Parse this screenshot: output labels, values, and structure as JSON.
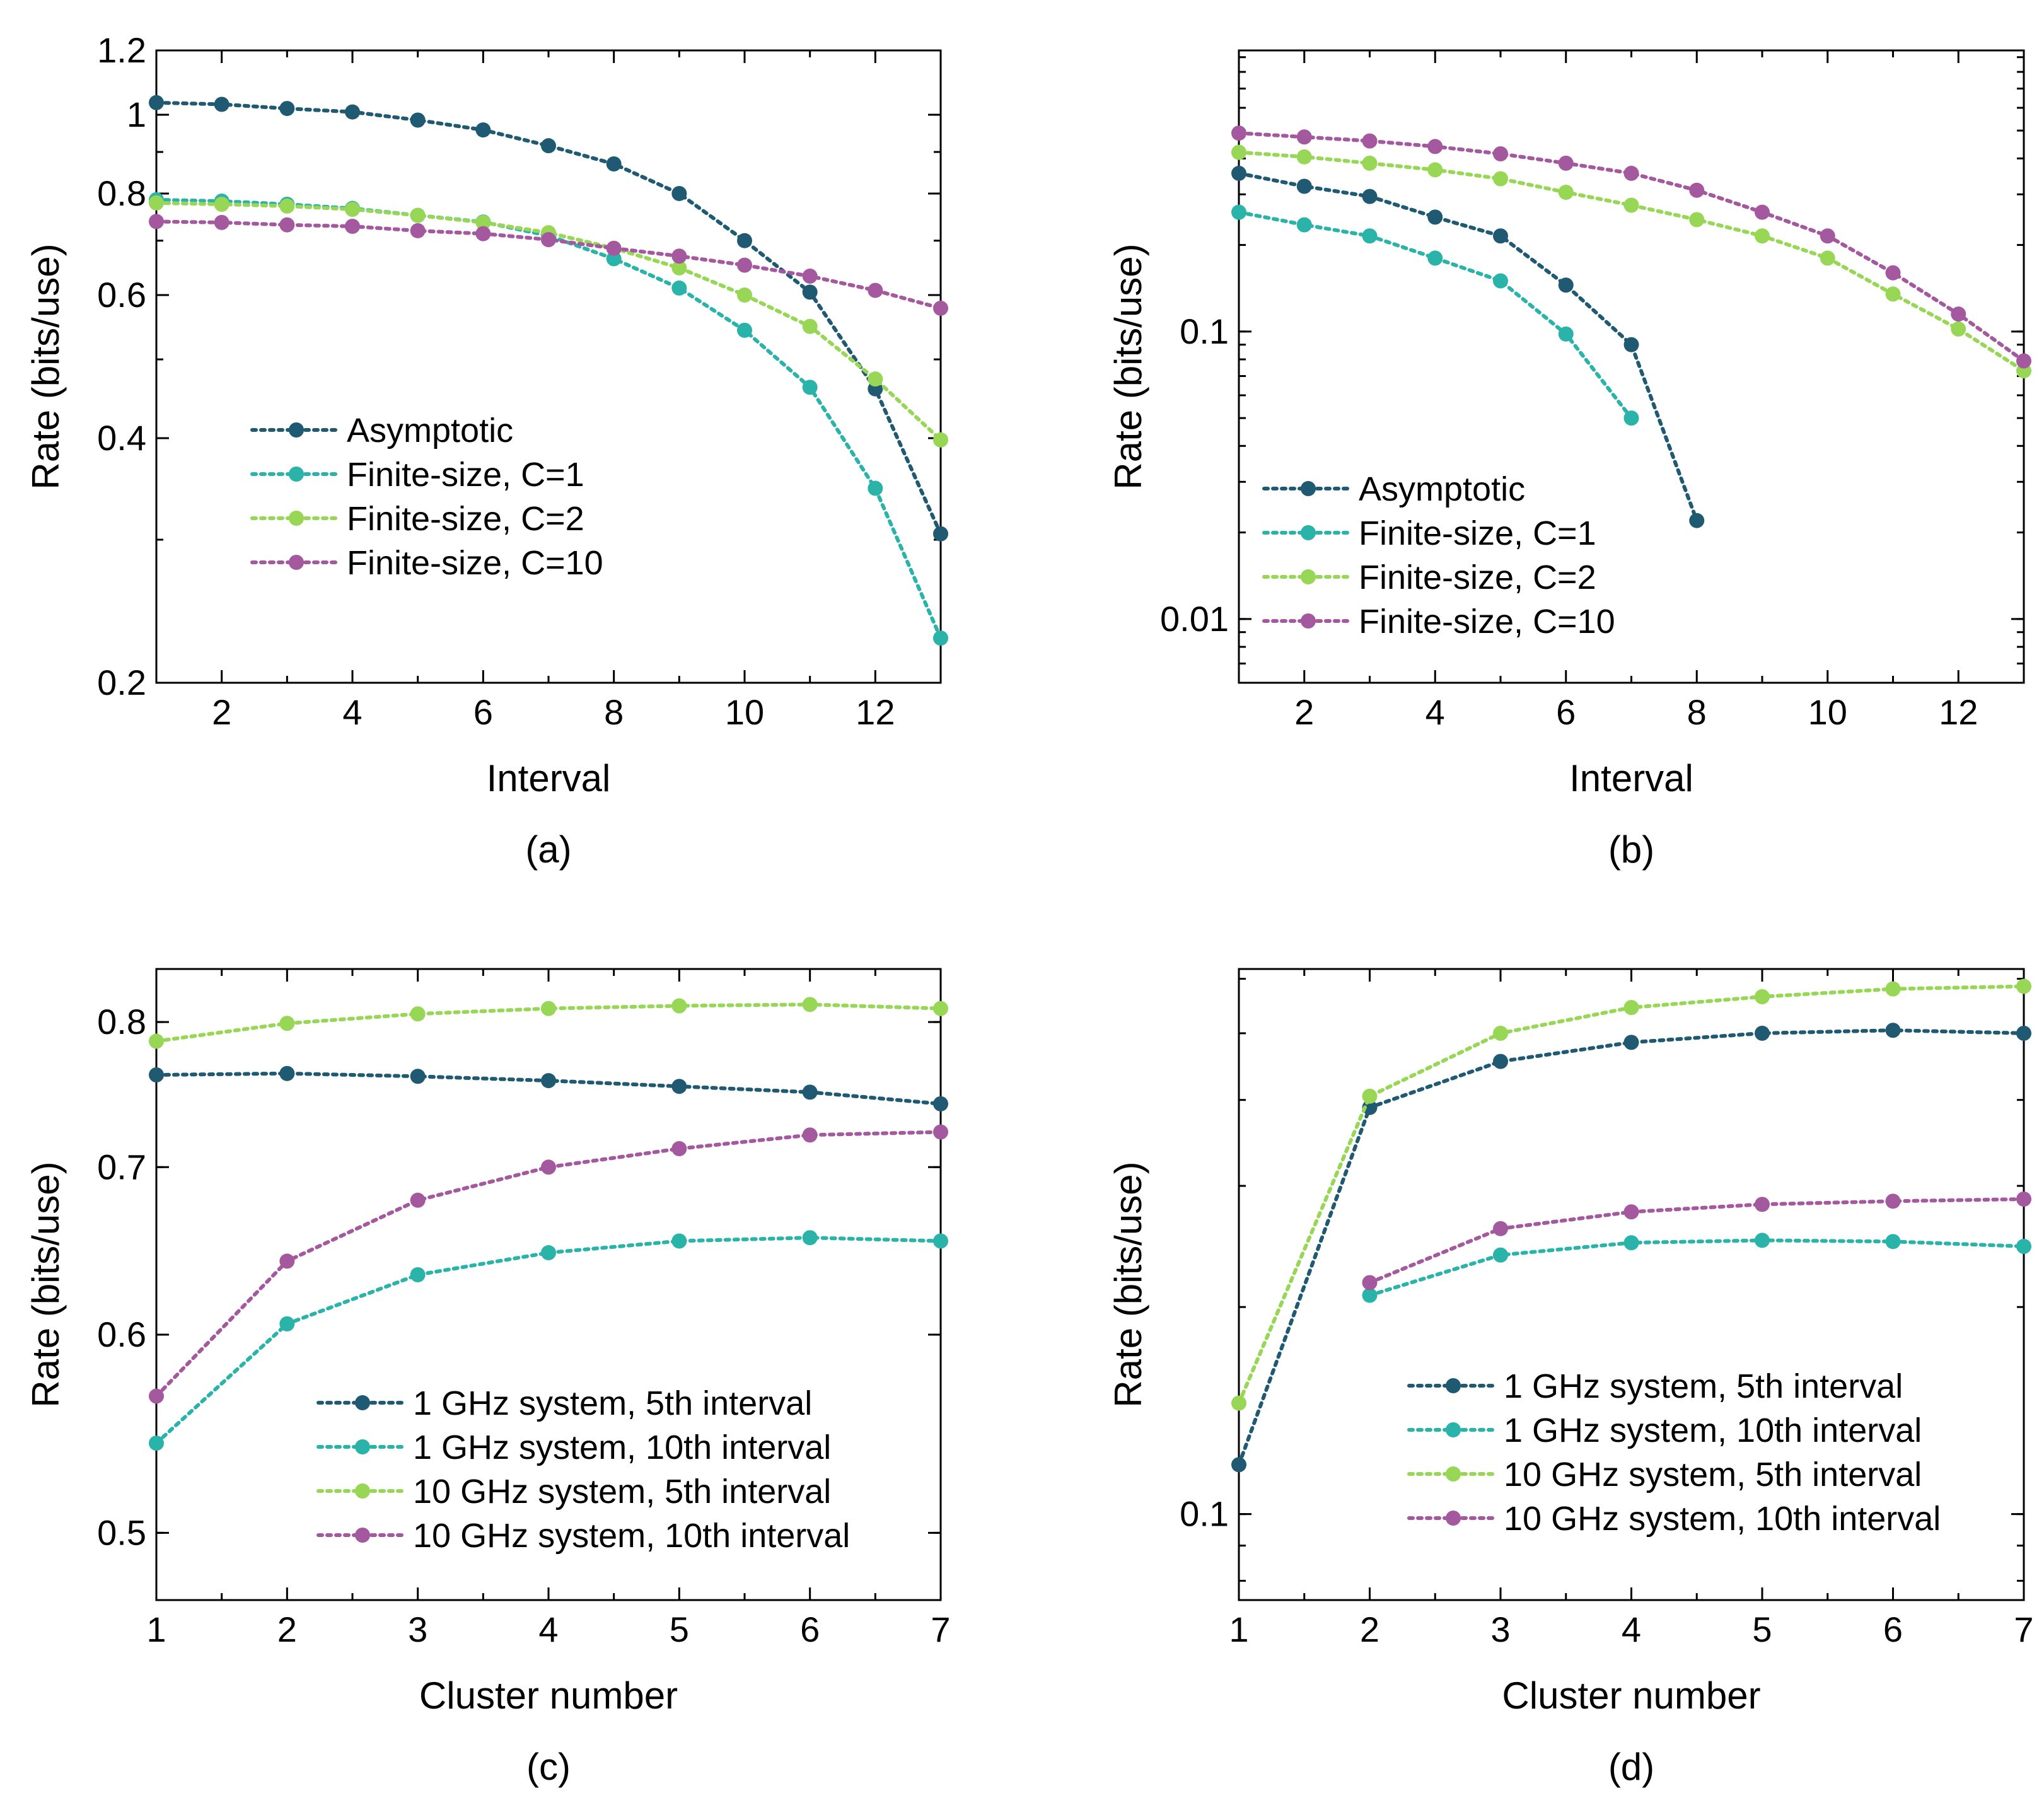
{
  "colors": {
    "asymptotic": "#1f5a72",
    "c1": "#2ab3a9",
    "c2": "#98d656",
    "c10": "#a4599f",
    "axis": "#000000"
  },
  "chart_data": [
    {
      "id": "a",
      "type": "line",
      "scale": "log",
      "caption": "(a)",
      "xlabel": "Interval",
      "ylabel": "Rate (bits/use)",
      "xlim": [
        1,
        13
      ],
      "ylim": [
        0.2,
        1.2
      ],
      "xticks": [
        2,
        4,
        6,
        8,
        10,
        12
      ],
      "xtick_labels": [
        "2",
        "4",
        "6",
        "8",
        "10",
        "12"
      ],
      "yticks": [
        0.2,
        0.4,
        0.6,
        0.8,
        1,
        1.2
      ],
      "ytick_labels": [
        "0.2",
        "0.4",
        "0.6",
        "0.8",
        "1",
        "1.2"
      ],
      "legend_loc": "lower-left",
      "series": [
        {
          "name": "Asymptotic",
          "color_key": "asymptotic",
          "x": [
            1,
            2,
            3,
            4,
            5,
            6,
            7,
            8,
            9,
            10,
            11,
            12,
            13
          ],
          "y": [
            1.035,
            1.03,
            1.018,
            1.008,
            0.985,
            0.958,
            0.916,
            0.87,
            0.8,
            0.7,
            0.605,
            0.46,
            0.305
          ]
        },
        {
          "name": "Finite-size, C=1",
          "color_key": "c1",
          "x": [
            1,
            2,
            3,
            4,
            5,
            6,
            7,
            8,
            9,
            10,
            11,
            12,
            13
          ],
          "y": [
            0.786,
            0.783,
            0.776,
            0.767,
            0.752,
            0.738,
            0.71,
            0.665,
            0.612,
            0.543,
            0.462,
            0.347,
            0.227
          ]
        },
        {
          "name": "Finite-size, C=2",
          "color_key": "c2",
          "x": [
            1,
            2,
            3,
            4,
            5,
            6,
            7,
            8,
            9,
            10,
            11,
            12,
            13
          ],
          "y": [
            0.779,
            0.776,
            0.772,
            0.765,
            0.752,
            0.737,
            0.716,
            0.685,
            0.648,
            0.6,
            0.549,
            0.473,
            0.398
          ]
        },
        {
          "name": "Finite-size, C=10",
          "color_key": "c10",
          "x": [
            1,
            2,
            3,
            4,
            5,
            6,
            7,
            8,
            9,
            10,
            11,
            12,
            13
          ],
          "y": [
            0.739,
            0.737,
            0.732,
            0.729,
            0.72,
            0.714,
            0.702,
            0.685,
            0.67,
            0.653,
            0.633,
            0.608,
            0.578
          ]
        }
      ]
    },
    {
      "id": "b",
      "type": "line",
      "scale": "log",
      "caption": "(b)",
      "xlabel": "Interval",
      "ylabel": "Rate (bits/use)",
      "xlim": [
        1,
        13
      ],
      "ylim": [
        0.006,
        0.95
      ],
      "xticks": [
        2,
        4,
        6,
        8,
        10,
        12
      ],
      "xtick_labels": [
        "2",
        "4",
        "6",
        "8",
        "10",
        "12"
      ],
      "yticks": [
        0.01,
        0.1
      ],
      "ytick_labels": [
        "0.01",
        "0.1"
      ],
      "legend_loc": "lower-left",
      "series": [
        {
          "name": "Asymptotic",
          "color_key": "asymptotic",
          "x": [
            1,
            2,
            3,
            4,
            5,
            6,
            7,
            8
          ],
          "y": [
            0.355,
            0.32,
            0.295,
            0.25,
            0.215,
            0.145,
            0.09,
            0.022
          ]
        },
        {
          "name": "Finite-size, C=1",
          "color_key": "c1",
          "x": [
            1,
            2,
            3,
            4,
            5,
            6,
            7
          ],
          "y": [
            0.26,
            0.235,
            0.215,
            0.18,
            0.15,
            0.098,
            0.05
          ]
        },
        {
          "name": "Finite-size, C=2",
          "color_key": "c2",
          "x": [
            1,
            2,
            3,
            4,
            5,
            6,
            7,
            8,
            9,
            10,
            11,
            12,
            13
          ],
          "y": [
            0.42,
            0.405,
            0.385,
            0.365,
            0.34,
            0.305,
            0.275,
            0.245,
            0.215,
            0.18,
            0.135,
            0.102,
            0.073
          ]
        },
        {
          "name": "Finite-size, C=10",
          "color_key": "c10",
          "x": [
            1,
            2,
            3,
            4,
            5,
            6,
            7,
            8,
            9,
            10,
            11,
            12,
            13
          ],
          "y": [
            0.49,
            0.475,
            0.46,
            0.44,
            0.415,
            0.385,
            0.355,
            0.31,
            0.26,
            0.215,
            0.16,
            0.115,
            0.079
          ]
        }
      ]
    },
    {
      "id": "c",
      "type": "line",
      "scale": "log",
      "caption": "(c)",
      "xlabel": "Cluster number",
      "ylabel": "Rate (bits/use)",
      "xlim": [
        1,
        7
      ],
      "ylim": [
        0.47,
        0.84
      ],
      "xticks": [
        1,
        2,
        3,
        4,
        5,
        6,
        7
      ],
      "xtick_labels": [
        "1",
        "2",
        "3",
        "4",
        "5",
        "6",
        "7"
      ],
      "yticks": [
        0.5,
        0.6,
        0.7,
        0.8
      ],
      "ytick_labels": [
        "0.5",
        "0.6",
        "0.7",
        "0.8"
      ],
      "legend_loc": "lower-right",
      "series": [
        {
          "name": "1 GHz system, 5th interval",
          "color_key": "asymptotic",
          "x": [
            1,
            2,
            3,
            4,
            5,
            6,
            7
          ],
          "y": [
            0.762,
            0.763,
            0.761,
            0.758,
            0.754,
            0.75,
            0.742
          ]
        },
        {
          "name": "1 GHz system, 10th interval",
          "color_key": "c1",
          "x": [
            1,
            2,
            3,
            4,
            5,
            6,
            7
          ],
          "y": [
            0.543,
            0.606,
            0.634,
            0.647,
            0.654,
            0.656,
            0.654
          ]
        },
        {
          "name": "10 GHz system, 5th interval",
          "color_key": "c2",
          "x": [
            1,
            2,
            3,
            4,
            5,
            6,
            7
          ],
          "y": [
            0.786,
            0.799,
            0.806,
            0.81,
            0.812,
            0.813,
            0.81
          ]
        },
        {
          "name": "10 GHz system, 10th interval",
          "color_key": "c10",
          "x": [
            1,
            2,
            3,
            4,
            5,
            6,
            7
          ],
          "y": [
            0.567,
            0.642,
            0.679,
            0.7,
            0.712,
            0.721,
            0.723
          ]
        }
      ]
    },
    {
      "id": "d",
      "type": "line",
      "scale": "log",
      "caption": "(d)",
      "xlabel": "Cluster number",
      "ylabel": "Rate (bits/use)",
      "xlim": [
        1,
        7
      ],
      "ylim": [
        0.075,
        0.62
      ],
      "xticks": [
        1,
        2,
        3,
        4,
        5,
        6,
        7
      ],
      "xtick_labels": [
        "1",
        "2",
        "3",
        "4",
        "5",
        "6",
        "7"
      ],
      "yticks": [
        0.1
      ],
      "ytick_labels": [
        "0.1"
      ],
      "legend_loc": "lower-right",
      "series": [
        {
          "name": "1 GHz system, 5th interval",
          "color_key": "asymptotic",
          "x": [
            1,
            2,
            3,
            4,
            5,
            6,
            7
          ],
          "y": [
            0.118,
            0.39,
            0.455,
            0.485,
            0.5,
            0.505,
            0.5
          ]
        },
        {
          "name": "1 GHz system, 10th interval",
          "color_key": "c1",
          "x": [
            2,
            3,
            4,
            5,
            6,
            7
          ],
          "y": [
            0.208,
            0.238,
            0.248,
            0.25,
            0.249,
            0.245
          ]
        },
        {
          "name": "10 GHz system, 5th interval",
          "color_key": "c2",
          "x": [
            1,
            2,
            3,
            4,
            5,
            6,
            7
          ],
          "y": [
            0.145,
            0.405,
            0.5,
            0.545,
            0.565,
            0.58,
            0.585
          ]
        },
        {
          "name": "10 GHz system, 10th interval",
          "color_key": "c10",
          "x": [
            2,
            3,
            4,
            5,
            6,
            7
          ],
          "y": [
            0.217,
            0.26,
            0.275,
            0.282,
            0.285,
            0.287
          ]
        }
      ]
    }
  ]
}
